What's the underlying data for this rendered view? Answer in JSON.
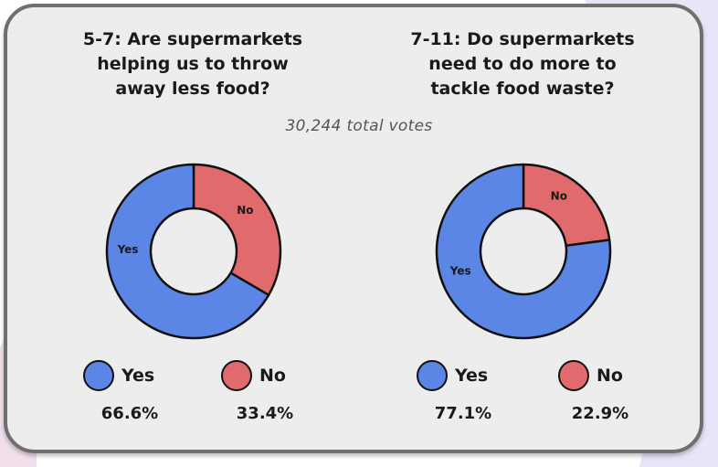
{
  "colors": {
    "yes": "#5b86e5",
    "no": "#e06a6c",
    "card_background": "#eeedee",
    "card_border": "#6f6f6f",
    "ribbon": "#c8c0f0"
  },
  "total_votes": "30,244 total votes",
  "chart_data": [
    {
      "type": "pie",
      "style": "donut",
      "title": "5-7: Are supermarkets helping us to throw away less food?",
      "title_lines": [
        "5-7: Are supermarkets",
        "helping us to throw",
        "away less food?"
      ],
      "categories": [
        "Yes",
        "No"
      ],
      "values": [
        66.6,
        33.4
      ],
      "value_labels": [
        "66.6%",
        "33.4%"
      ],
      "legend": "bottom",
      "slice_labels": true
    },
    {
      "type": "pie",
      "style": "donut",
      "title": "7-11: Do supermarkets need to do more to tackle food waste?",
      "title_lines": [
        "7-11: Do supermarkets",
        "need to do more to",
        "tackle food waste?"
      ],
      "categories": [
        "Yes",
        "No"
      ],
      "values": [
        77.1,
        22.9
      ],
      "value_labels": [
        "77.1%",
        "22.9%"
      ],
      "legend": "bottom",
      "slice_labels": true
    }
  ]
}
